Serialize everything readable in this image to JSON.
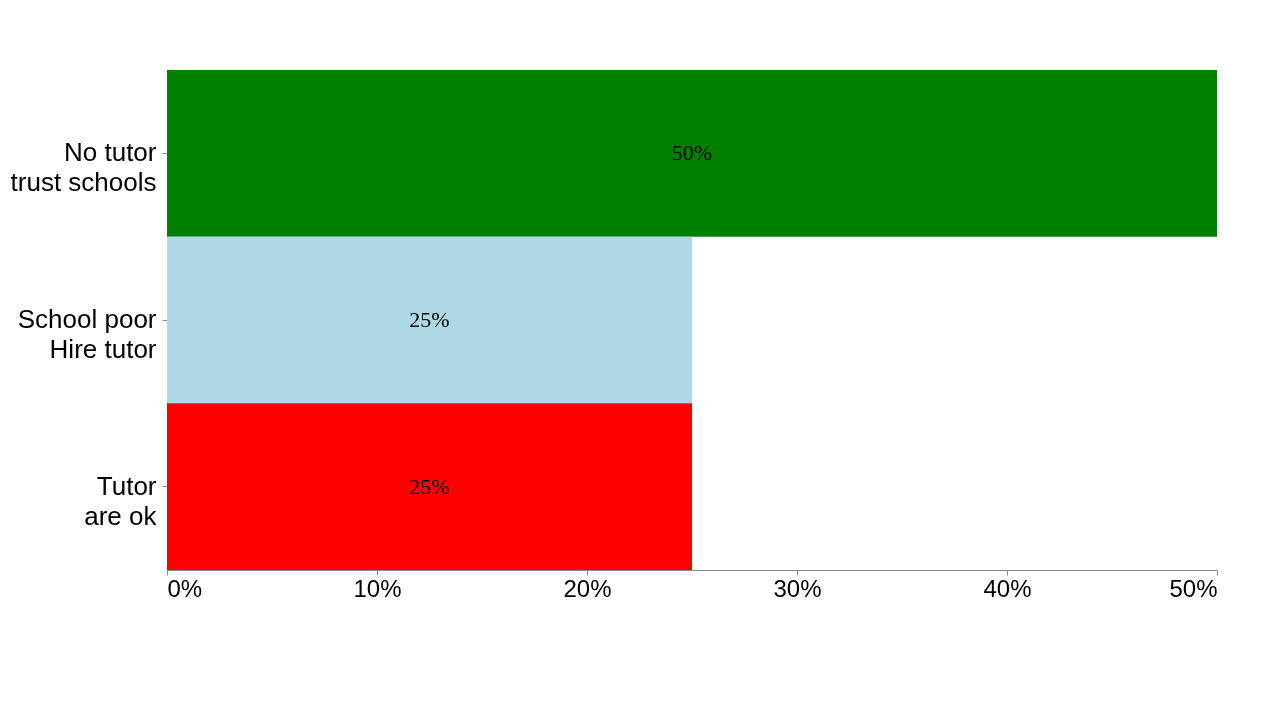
{
  "chart_data": {
    "type": "bar",
    "orientation": "horizontal",
    "categories": [
      "No tutor\ntrust schools",
      "School poor\nHire tutor",
      "Tutor\nare ok"
    ],
    "values": [
      50,
      25,
      25
    ],
    "colors": [
      "#008000",
      "#add8e6",
      "#ff0000"
    ],
    "value_labels": [
      "50%",
      "25%",
      "25%"
    ],
    "xlim": [
      0,
      50
    ],
    "xticks": [
      {
        "value": 0,
        "label": "0%"
      },
      {
        "value": 10,
        "label": "10%"
      },
      {
        "value": 20,
        "label": "20%"
      },
      {
        "value": 30,
        "label": "30%"
      },
      {
        "value": 40,
        "label": "40%"
      },
      {
        "value": 50,
        "label": "50%"
      }
    ],
    "grid": false
  }
}
